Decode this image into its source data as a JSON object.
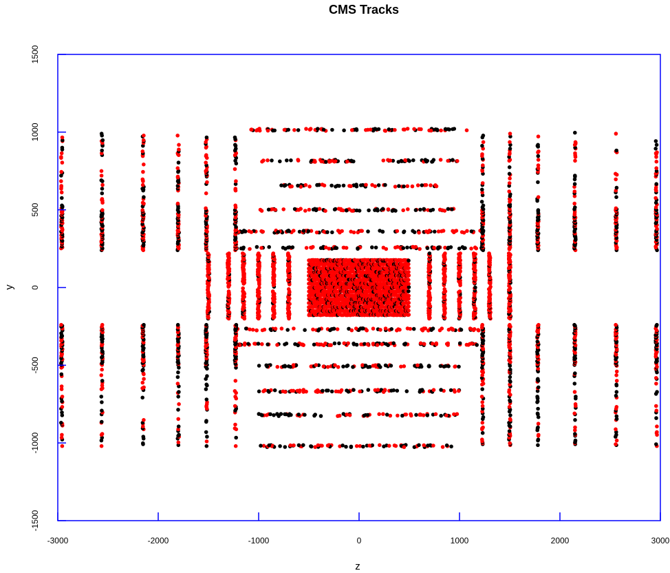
{
  "chart_data": {
    "type": "scatter",
    "title": "CMS Tracks",
    "xlabel": "z",
    "ylabel": "y",
    "xlim": [
      -3000,
      3000
    ],
    "ylim": [
      -1500,
      1500
    ],
    "xticks": [
      -3000,
      -2000,
      -1000,
      0,
      1000,
      2000,
      3000
    ],
    "yticks": [
      -1500,
      -1000,
      -500,
      0,
      500,
      1000,
      1500
    ],
    "grid": false,
    "frame_color": "#0000ff",
    "series_colors": [
      "#000000",
      "#ff0000"
    ],
    "series": [
      {
        "color": "#ff0000",
        "description_ref": "barrel-pixel",
        "z_range": [
          -500,
          500
        ],
        "y_rows": [
          -175,
          -150,
          -125,
          -100,
          -75,
          -50,
          -25,
          0,
          25,
          50,
          75,
          100,
          125,
          150,
          175
        ],
        "density": "dense"
      }
    ],
    "detector_layers": {
      "barrel_rows": [
        {
          "y": 255,
          "z_range": [
            -1230,
            1230
          ]
        },
        {
          "y": 360,
          "z_range": [
            -1230,
            1230
          ]
        },
        {
          "y": 500,
          "z_range": [
            -1000,
            1000
          ]
        },
        {
          "y": 655,
          "z_range": [
            -800,
            800
          ]
        },
        {
          "y": 815,
          "z_range": [
            -1000,
            1000
          ]
        },
        {
          "y": 1015,
          "z_range": [
            -1100,
            1100
          ]
        },
        {
          "y": -270,
          "z_range": [
            -1230,
            1230
          ]
        },
        {
          "y": -365,
          "z_range": [
            -1230,
            1230
          ]
        },
        {
          "y": -505,
          "z_range": [
            -1000,
            1000
          ]
        },
        {
          "y": -665,
          "z_range": [
            -1000,
            1000
          ]
        },
        {
          "y": -820,
          "z_range": [
            -1000,
            1000
          ]
        },
        {
          "y": -1020,
          "z_range": [
            -1000,
            1000
          ]
        }
      ],
      "inner_endcap_z": [
        -1500,
        -1300,
        -1150,
        -1000,
        -850,
        -700,
        700,
        850,
        1000,
        1150,
        1300,
        1500
      ],
      "inner_endcap_y_range": [
        -200,
        220
      ],
      "outer_endcap_z": [
        -2960,
        -2560,
        -2150,
        -1800,
        -1520,
        -1230,
        1230,
        1500,
        1780,
        2150,
        2560,
        2960
      ],
      "outer_endcap_y_bands": [
        [
          240,
          1000
        ],
        [
          -1020,
          -240
        ]
      ]
    }
  }
}
